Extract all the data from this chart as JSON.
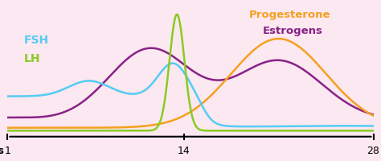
{
  "background_color": "#fce8f0",
  "colors": {
    "FSH": "#55ccf5",
    "LH": "#88cc22",
    "Progesterone": "#f5a020",
    "Estrogens": "#882288"
  },
  "label_colors": {
    "FSH": "#55ccf5",
    "LH": "#88cc22",
    "Progesterone": "#f5a020",
    "Estrogens": "#882288"
  },
  "xlim": [
    1,
    28
  ],
  "ylim": [
    0,
    1.05
  ],
  "x_ticks": [
    1,
    14,
    28
  ]
}
